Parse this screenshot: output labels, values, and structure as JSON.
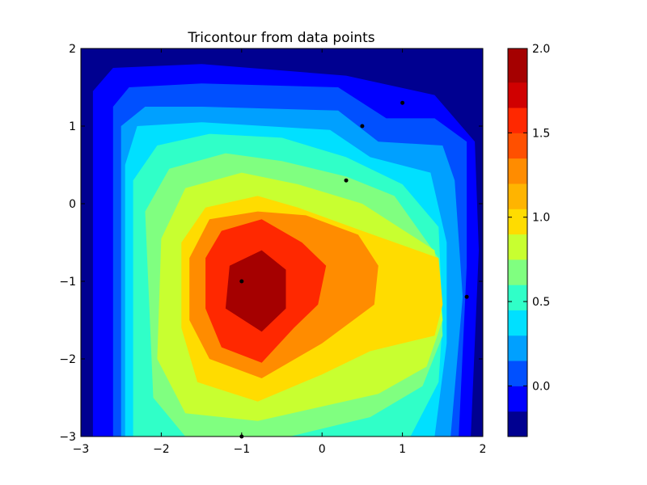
{
  "chart_data": {
    "type": "tricontour",
    "title": "Tricontour from data points",
    "xlim": [
      -3,
      2
    ],
    "ylim": [
      -3,
      2
    ],
    "x_ticks": [
      "−3",
      "−2",
      "−1",
      "0",
      "1",
      "2"
    ],
    "x_tick_values": [
      -3,
      -2,
      -1,
      0,
      1,
      2
    ],
    "y_ticks": [
      "−3",
      "−2",
      "−1",
      "0",
      "1",
      "2"
    ],
    "y_tick_values": [
      -3,
      -2,
      -1,
      0,
      1,
      2
    ],
    "colormap": "jet",
    "colorbar": {
      "range": [
        -0.3,
        2.0
      ],
      "ticks": [
        "0.0",
        "0.5",
        "1.0",
        "1.5",
        "2.0"
      ],
      "tick_values": [
        0.0,
        0.5,
        1.0,
        1.5,
        2.0
      ],
      "levels": [
        -0.3,
        -0.15,
        0.0,
        0.15,
        0.3,
        0.45,
        0.6,
        0.75,
        0.9,
        1.05,
        1.2,
        1.35,
        1.5,
        1.65,
        1.8,
        2.0
      ]
    },
    "contour_rings": [
      {
        "level": 0.0,
        "color": "#0000ff",
        "points": [
          [
            -2.85,
            1.45
          ],
          [
            -2.6,
            1.75
          ],
          [
            -1.5,
            1.8
          ],
          [
            0.3,
            1.65
          ],
          [
            1.4,
            1.4
          ],
          [
            1.9,
            0.8
          ],
          [
            1.95,
            -0.6
          ],
          [
            1.85,
            -3.0
          ],
          [
            -2.85,
            -3.0
          ]
        ]
      },
      {
        "level": 0.15,
        "color": "#0050ff",
        "points": [
          [
            -2.6,
            1.25
          ],
          [
            -2.4,
            1.5
          ],
          [
            -1.5,
            1.55
          ],
          [
            0.2,
            1.5
          ],
          [
            0.8,
            1.1
          ],
          [
            1.4,
            1.1
          ],
          [
            1.8,
            0.8
          ],
          [
            1.8,
            -0.8
          ],
          [
            1.7,
            -3.0
          ],
          [
            -2.6,
            -3.0
          ]
        ]
      },
      {
        "level": 0.3,
        "color": "#00a0ff",
        "points": [
          [
            -2.5,
            1.0
          ],
          [
            -2.2,
            1.25
          ],
          [
            -1.5,
            1.25
          ],
          [
            0.2,
            1.2
          ],
          [
            0.7,
            0.8
          ],
          [
            1.5,
            0.75
          ],
          [
            1.65,
            0.3
          ],
          [
            1.75,
            -1.2
          ],
          [
            1.6,
            -3.0
          ],
          [
            -2.5,
            -3.0
          ]
        ]
      },
      {
        "level": 0.45,
        "color": "#00e0ff",
        "points": [
          [
            -2.45,
            0.5
          ],
          [
            -2.3,
            1.0
          ],
          [
            -1.5,
            1.05
          ],
          [
            0.1,
            0.95
          ],
          [
            0.6,
            0.6
          ],
          [
            1.35,
            0.4
          ],
          [
            1.55,
            -0.5
          ],
          [
            1.55,
            -1.8
          ],
          [
            1.4,
            -3.0
          ],
          [
            -2.45,
            -3.0
          ]
        ]
      },
      {
        "level": 0.6,
        "color": "#30ffc8",
        "points": [
          [
            -2.35,
            0.3
          ],
          [
            -2.05,
            0.75
          ],
          [
            -1.4,
            0.9
          ],
          [
            -0.5,
            0.85
          ],
          [
            0.3,
            0.6
          ],
          [
            1.0,
            0.25
          ],
          [
            1.45,
            -0.3
          ],
          [
            1.5,
            -1.5
          ],
          [
            1.45,
            -2.3
          ],
          [
            1.1,
            -3.0
          ],
          [
            -2.35,
            -3.0
          ]
        ]
      },
      {
        "level": 0.75,
        "color": "#80ff80",
        "points": [
          [
            -2.2,
            -0.1
          ],
          [
            -1.9,
            0.45
          ],
          [
            -1.2,
            0.65
          ],
          [
            -0.5,
            0.55
          ],
          [
            0.3,
            0.35
          ],
          [
            0.9,
            0.1
          ],
          [
            1.45,
            -0.7
          ],
          [
            1.5,
            -1.7
          ],
          [
            1.25,
            -2.35
          ],
          [
            0.6,
            -2.75
          ],
          [
            -0.4,
            -3.0
          ],
          [
            -1.7,
            -3.0
          ],
          [
            -2.1,
            -2.5
          ]
        ]
      },
      {
        "level": 0.9,
        "color": "#c8ff30",
        "points": [
          [
            -2.0,
            -0.45
          ],
          [
            -1.7,
            0.2
          ],
          [
            -1.0,
            0.4
          ],
          [
            -0.3,
            0.25
          ],
          [
            0.5,
            0.0
          ],
          [
            1.4,
            -0.6
          ],
          [
            1.5,
            -1.5
          ],
          [
            1.3,
            -2.1
          ],
          [
            0.7,
            -2.45
          ],
          [
            -0.8,
            -2.8
          ],
          [
            -1.7,
            -2.7
          ],
          [
            -2.05,
            -2.0
          ]
        ]
      },
      {
        "level": 1.05,
        "color": "#ffdc00",
        "points": [
          [
            -1.75,
            -0.5
          ],
          [
            -1.45,
            -0.05
          ],
          [
            -0.8,
            0.1
          ],
          [
            -0.3,
            -0.05
          ],
          [
            0.5,
            -0.35
          ],
          [
            1.45,
            -0.7
          ],
          [
            1.5,
            -1.3
          ],
          [
            1.4,
            -1.7
          ],
          [
            0.6,
            -1.9
          ],
          [
            0.0,
            -2.2
          ],
          [
            -0.8,
            -2.55
          ],
          [
            -1.55,
            -2.3
          ],
          [
            -1.75,
            -1.6
          ]
        ]
      },
      {
        "level": 1.35,
        "color": "#ff8c00",
        "points": [
          [
            -1.65,
            -0.7
          ],
          [
            -1.4,
            -0.2
          ],
          [
            -0.8,
            -0.1
          ],
          [
            -0.2,
            -0.15
          ],
          [
            0.45,
            -0.4
          ],
          [
            0.7,
            -0.8
          ],
          [
            0.65,
            -1.3
          ],
          [
            0.0,
            -1.8
          ],
          [
            -0.75,
            -2.25
          ],
          [
            -1.4,
            -2.0
          ],
          [
            -1.65,
            -1.5
          ]
        ]
      },
      {
        "level": 1.65,
        "color": "#ff2800",
        "points": [
          [
            -1.45,
            -0.7
          ],
          [
            -1.25,
            -0.35
          ],
          [
            -0.75,
            -0.2
          ],
          [
            -0.25,
            -0.5
          ],
          [
            0.05,
            -0.8
          ],
          [
            -0.05,
            -1.3
          ],
          [
            -0.35,
            -1.6
          ],
          [
            -0.75,
            -2.05
          ],
          [
            -1.25,
            -1.85
          ],
          [
            -1.45,
            -1.35
          ]
        ]
      },
      {
        "level": 1.8,
        "color": "#a50000",
        "points": [
          [
            -1.15,
            -0.8
          ],
          [
            -0.75,
            -0.6
          ],
          [
            -0.45,
            -0.85
          ],
          [
            -0.45,
            -1.35
          ],
          [
            -0.75,
            -1.65
          ],
          [
            -1.2,
            -1.35
          ]
        ]
      }
    ],
    "data_points": [
      {
        "x": -1.0,
        "y": -1.0
      },
      {
        "x": 0.3,
        "y": 0.3
      },
      {
        "x": 0.5,
        "y": 1.0
      },
      {
        "x": 1.0,
        "y": 1.3
      },
      {
        "x": 1.8,
        "y": -1.2
      },
      {
        "x": -1.0,
        "y": -3.0
      }
    ]
  }
}
